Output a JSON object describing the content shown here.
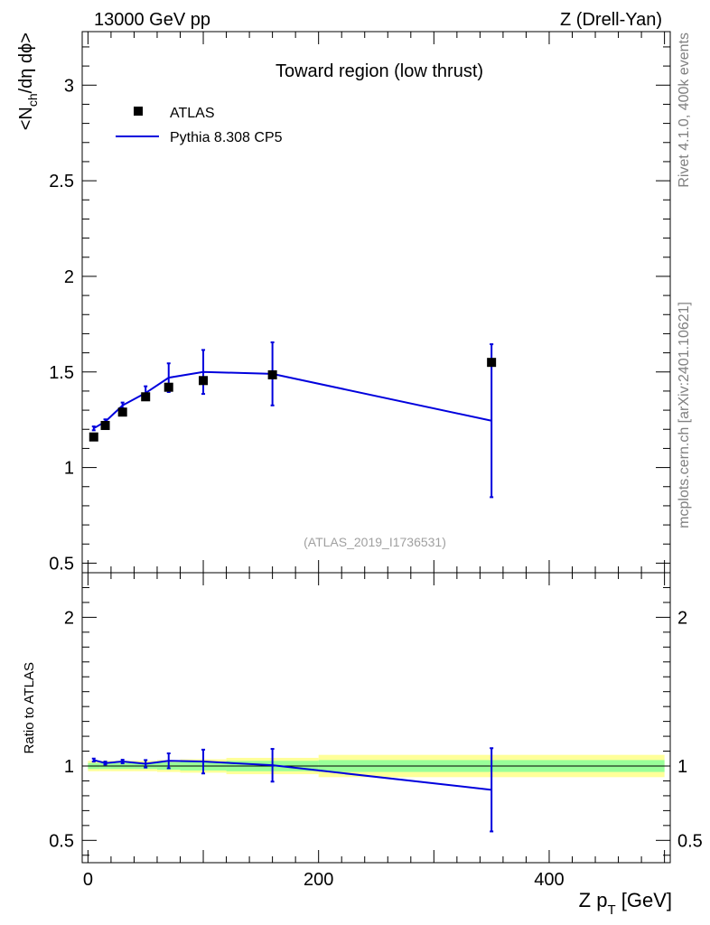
{
  "header": {
    "left": "13000 GeV pp",
    "right": "Z (Drell-Yan)"
  },
  "side_text": {
    "rivet": "Rivet 4.1.0,  400k events",
    "mcplots": "mcplots.cern.ch [arXiv:2401.10621]"
  },
  "chart_data": {
    "type": "scatter",
    "title": "Toward region (low thrust)",
    "analysis_label": "(ATLAS_2019_I1736531)",
    "xlabel_main": "Z p",
    "xlabel_sub": "T",
    "xlabel_unit": " [GeV]",
    "ylabel_main": {
      "prefix": "<N",
      "sub": "ch",
      "suffix": "/dη dϕ>"
    },
    "ylabel_ratio": "Ratio to ATLAS",
    "xlim": [
      -5,
      505
    ],
    "ylim_main": [
      0.45,
      3.28
    ],
    "ylim_ratio": [
      0.35,
      2.3
    ],
    "x_ticks": [
      {
        "v": 0,
        "label": "0"
      },
      {
        "v": 200,
        "label": "200"
      },
      {
        "v": 400,
        "label": "400"
      }
    ],
    "y_ticks_main": [
      {
        "v": 0.5,
        "label": "0.5"
      },
      {
        "v": 1,
        "label": "1"
      },
      {
        "v": 1.5,
        "label": "1.5"
      },
      {
        "v": 2,
        "label": "2"
      },
      {
        "v": 2.5,
        "label": "2.5"
      },
      {
        "v": 3,
        "label": "3"
      }
    ],
    "y_ticks_ratio": [
      {
        "v": 0.5,
        "label": "0.5"
      },
      {
        "v": 1,
        "label": "1"
      },
      {
        "v": 2,
        "label": "2"
      }
    ],
    "legend_placement": "top-left",
    "series": [
      {
        "name": "ATLAS",
        "kind": "data",
        "color": "#000000",
        "x": [
          5,
          15,
          30,
          50,
          70,
          100,
          160,
          350
        ],
        "y": [
          1.16,
          1.22,
          1.29,
          1.37,
          1.42,
          1.455,
          1.485,
          1.55
        ]
      },
      {
        "name": "Pythia 8.308 CP5",
        "kind": "mc",
        "color": "#0000dd",
        "x": [
          5,
          15,
          30,
          50,
          70,
          100,
          160,
          350
        ],
        "y": [
          1.205,
          1.24,
          1.325,
          1.39,
          1.47,
          1.5,
          1.49,
          1.245
        ],
        "err": [
          0.01,
          0.012,
          0.015,
          0.035,
          0.075,
          0.115,
          0.165,
          0.4
        ]
      }
    ],
    "ratio": {
      "y": [
        1.04,
        1.02,
        1.03,
        1.015,
        1.035,
        1.03,
        1.005,
        0.84
      ],
      "err": [
        0.01,
        0.01,
        0.012,
        0.025,
        0.05,
        0.08,
        0.11,
        0.28
      ],
      "bands": [
        {
          "x0": 0,
          "x1": 10,
          "g": 0.02,
          "y": 0.035
        },
        {
          "x0": 10,
          "x1": 20,
          "g": 0.02,
          "y": 0.035
        },
        {
          "x0": 20,
          "x1": 40,
          "g": 0.02,
          "y": 0.035
        },
        {
          "x0": 40,
          "x1": 60,
          "g": 0.02,
          "y": 0.035
        },
        {
          "x0": 60,
          "x1": 80,
          "g": 0.025,
          "y": 0.04
        },
        {
          "x0": 80,
          "x1": 120,
          "g": 0.03,
          "y": 0.045
        },
        {
          "x0": 120,
          "x1": 200,
          "g": 0.035,
          "y": 0.055
        },
        {
          "x0": 200,
          "x1": 500,
          "g": 0.04,
          "y": 0.075
        }
      ],
      "band_colors": {
        "inner": "#99ff99",
        "outer": "#ffff99"
      }
    }
  }
}
